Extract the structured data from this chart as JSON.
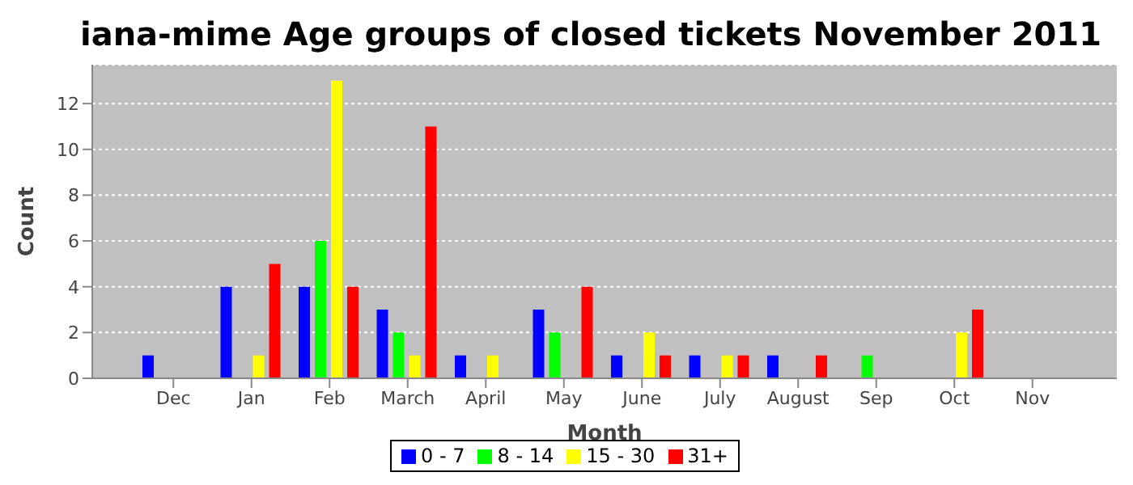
{
  "chart_data": {
    "type": "bar",
    "title": "iana-mime Age groups of closed tickets November 2011",
    "xlabel": "Month",
    "ylabel": "Count",
    "categories": [
      "Dec",
      "Jan",
      "Feb",
      "March",
      "April",
      "May",
      "June",
      "July",
      "August",
      "Sep",
      "Oct",
      "Nov"
    ],
    "series": [
      {
        "name": "0 - 7",
        "color": "#0000ff",
        "values": [
          1,
          4,
          4,
          3,
          1,
          3,
          1,
          1,
          1,
          0,
          0,
          0
        ]
      },
      {
        "name": "8 - 14",
        "color": "#00ff00",
        "values": [
          0,
          0,
          6,
          2,
          0,
          2,
          0,
          0,
          0,
          1,
          0,
          0
        ]
      },
      {
        "name": "15 - 30",
        "color": "#ffff00",
        "values": [
          0,
          1,
          13,
          1,
          1,
          0,
          2,
          1,
          0,
          0,
          2,
          0
        ]
      },
      {
        "name": "31+",
        "color": "#ff0000",
        "values": [
          0,
          5,
          4,
          11,
          0,
          4,
          1,
          1,
          1,
          0,
          3,
          0
        ]
      }
    ],
    "ylim": [
      0,
      13.7
    ],
    "yticks": [
      0,
      2,
      4,
      6,
      8,
      10,
      12
    ],
    "grid": "y",
    "legend": "bottom"
  }
}
